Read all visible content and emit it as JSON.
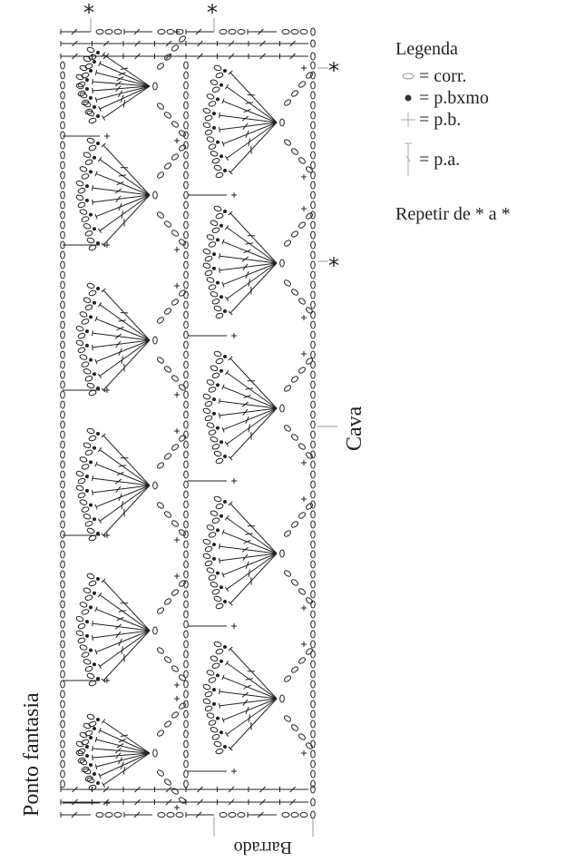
{
  "legend": {
    "title": "Legenda",
    "items": [
      {
        "icon": "chain-oval-icon",
        "label": "= corr."
      },
      {
        "icon": "slip-stitch-dot-icon",
        "label": "= p.bxmo"
      },
      {
        "icon": "single-crochet-cross-icon",
        "label": "= p.b."
      },
      {
        "icon": "double-crochet-icon",
        "label": "= p.a."
      }
    ],
    "repeat_note": "Repetir de * a *"
  },
  "labels": {
    "pattern": "Ponto fantasia",
    "armhole": "Cava",
    "border": "Barrado",
    "asterisk": "*"
  },
  "colors": {
    "ink": "#222222",
    "leader": "#999999"
  }
}
